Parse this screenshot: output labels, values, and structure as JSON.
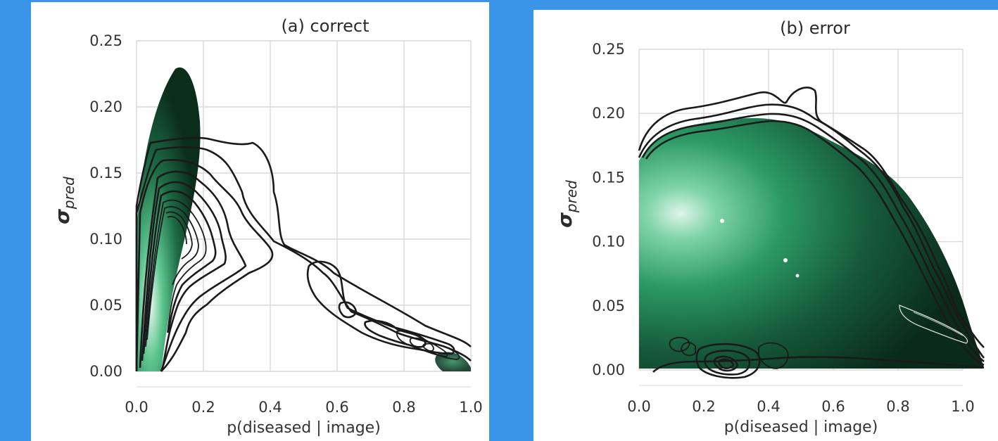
{
  "chart_data": [
    {
      "type": "density_contour",
      "title": "(a) correct",
      "xlabel": "p(diseased | image)",
      "ylabel_symbol": "σ",
      "ylabel_subscript": "pred",
      "xlim": [
        0.0,
        1.0
      ],
      "ylim": [
        0.0,
        0.25
      ],
      "xticks": [
        "0.0",
        "0.2",
        "0.4",
        "0.6",
        "0.8",
        "1.0"
      ],
      "yticks": [
        "0.00",
        "0.05",
        "0.10",
        "0.15",
        "0.20",
        "0.25"
      ],
      "grid": true,
      "fill_color": "#1f7a4c",
      "peak_color": "#e8f7ee",
      "density_peak": {
        "x": 0.04,
        "y": 0.02
      },
      "contour_extent": {
        "x": [
          0.0,
          1.0
        ],
        "y": [
          0.0,
          0.175
        ]
      }
    },
    {
      "type": "density_contour",
      "title": "(b) error",
      "xlabel": "p(diseased | image)",
      "ylabel_symbol": "σ",
      "ylabel_subscript": "pred",
      "xlim": [
        0.0,
        1.0
      ],
      "ylim": [
        0.0,
        0.25
      ],
      "xticks": [
        "0.0",
        "0.2",
        "0.4",
        "0.6",
        "0.8",
        "1.0"
      ],
      "yticks": [
        "0.00",
        "0.05",
        "0.10",
        "0.15",
        "0.20",
        "0.25"
      ],
      "grid": true,
      "fill_color": "#1f7a4c",
      "peak_color": "#e8f7ee",
      "density_peak": {
        "x": 0.15,
        "y": 0.115
      },
      "contour_extent": {
        "x": [
          0.0,
          1.0
        ],
        "y": [
          0.0,
          0.215
        ]
      }
    }
  ]
}
